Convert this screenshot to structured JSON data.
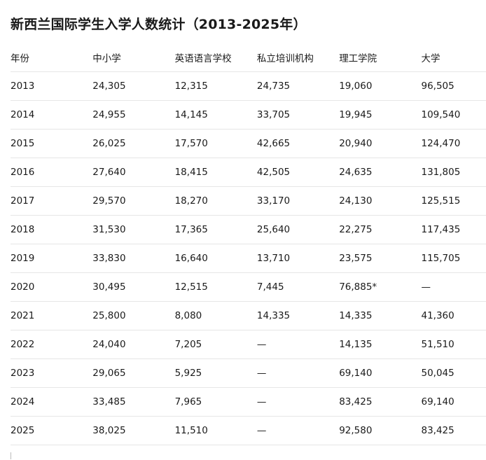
{
  "title": "新西兰国际学生入学人数统计（2013-2025年）",
  "table": {
    "header": [
      "年份",
      "中小学",
      "英语语言学校",
      "私立培训机构",
      "理工学院",
      "大学"
    ],
    "rows": [
      [
        "2013",
        "24,305",
        "12,315",
        "24,735",
        "19,060",
        "96,505"
      ],
      [
        "2014",
        "24,955",
        "14,145",
        "33,705",
        "19,945",
        "109,540"
      ],
      [
        "2015",
        "26,025",
        "17,570",
        "42,665",
        "20,940",
        "124,470"
      ],
      [
        "2016",
        "27,640",
        "18,415",
        "42,505",
        "24,635",
        "131,805"
      ],
      [
        "2017",
        "29,570",
        "18,270",
        "33,170",
        "24,130",
        "125,515"
      ],
      [
        "2018",
        "31,530",
        "17,365",
        "25,640",
        "22,275",
        "117,435"
      ],
      [
        "2019",
        "33,830",
        "16,640",
        "13,710",
        "23,575",
        "115,705"
      ],
      [
        "2020",
        "30,495",
        "12,515",
        "7,445",
        "76,885*",
        "—"
      ],
      [
        "2021",
        "25,800",
        "8,080",
        "14,335",
        "14,335",
        "41,360"
      ],
      [
        "2022",
        "24,040",
        "7,205",
        "—",
        "14,135",
        "51,510"
      ],
      [
        "2023",
        "29,065",
        "5,925",
        "—",
        "69,140",
        "50,045"
      ],
      [
        "2024",
        "33,485",
        "7,965",
        "—",
        "83,425",
        "69,140"
      ],
      [
        "2025",
        "38,025",
        "11,510",
        "—",
        "92,580",
        "83,425"
      ]
    ]
  }
}
